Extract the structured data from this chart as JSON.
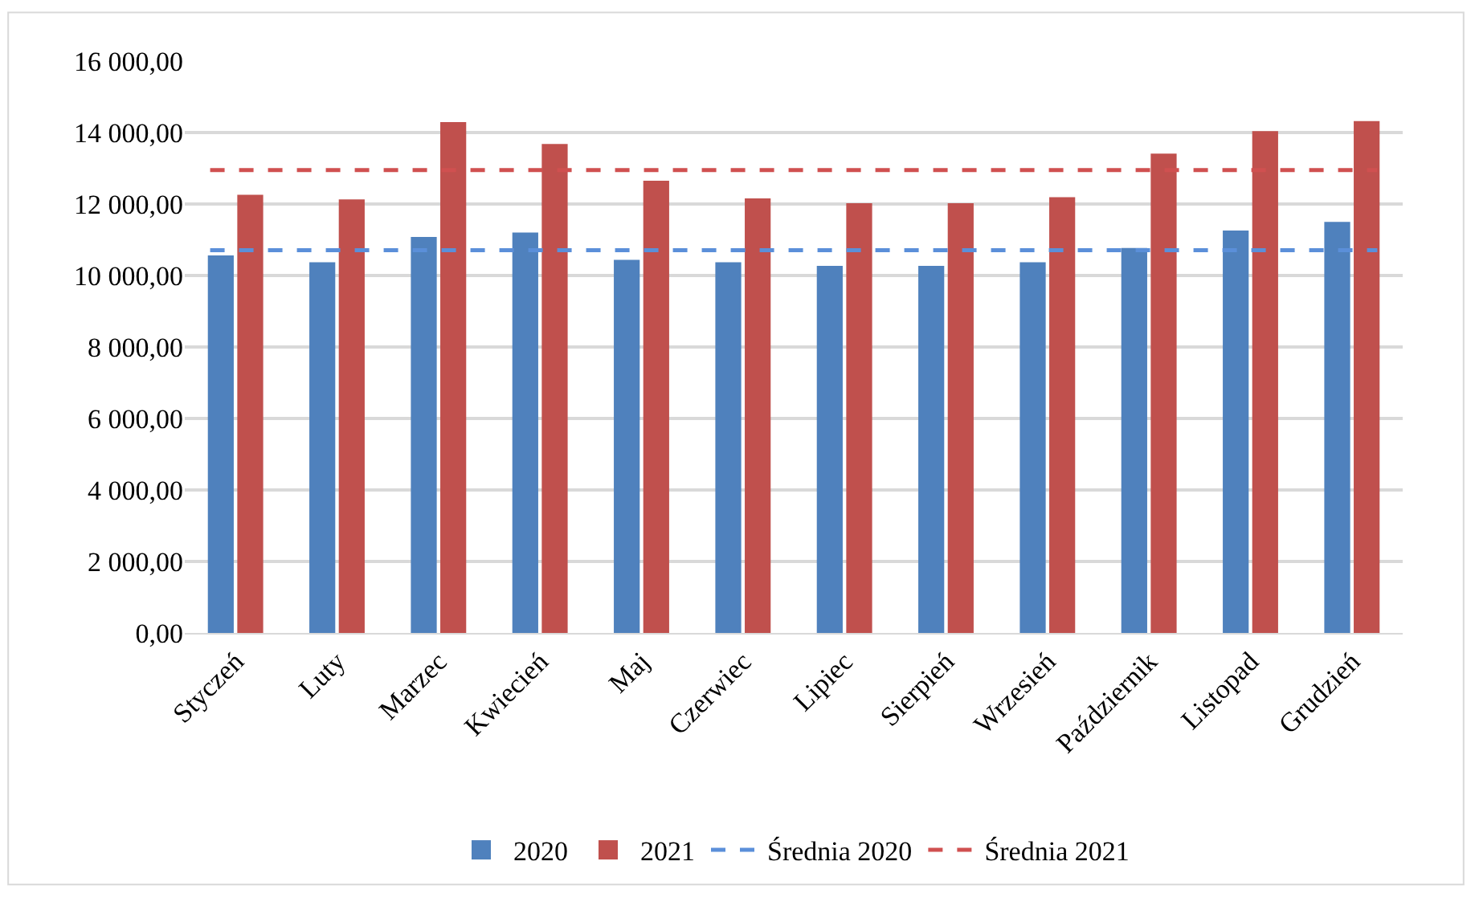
{
  "chart_data": {
    "type": "bar",
    "categories": [
      "Styczeń",
      "Luty",
      "Marzec",
      "Kwiecień",
      "Maj",
      "Czerwiec",
      "Lipiec",
      "Sierpień",
      "Wrzesień",
      "Październik",
      "Listopad",
      "Grudzień"
    ],
    "series": [
      {
        "name": "2020",
        "color": "#4f81bd",
        "values": [
          10560,
          10370,
          11080,
          11200,
          10440,
          10370,
          10270,
          10270,
          10370,
          10770,
          11260,
          11500
        ]
      },
      {
        "name": "2021",
        "color": "#c0504d",
        "values": [
          12260,
          12130,
          14290,
          13680,
          12650,
          12160,
          12020,
          12020,
          12190,
          13410,
          14040,
          14320
        ]
      }
    ],
    "ref_lines": [
      {
        "axis": "y",
        "value": 10710,
        "label": "Średnia 2020",
        "color": "#5b8fd9",
        "line_style": "dashed"
      },
      {
        "axis": "y",
        "value": 12950,
        "label": "Średnia 2021",
        "color": "#d05050",
        "line_style": "dashed"
      }
    ],
    "ylim": [
      0,
      16000
    ],
    "yticks": [
      {
        "value": 0,
        "label": "0,00"
      },
      {
        "value": 2000,
        "label": "2 000,00"
      },
      {
        "value": 4000,
        "label": "4 000,00"
      },
      {
        "value": 6000,
        "label": "6 000,00"
      },
      {
        "value": 8000,
        "label": "8 000,00"
      },
      {
        "value": 10000,
        "label": "10 000,00"
      },
      {
        "value": 12000,
        "label": "12 000,00"
      },
      {
        "value": 14000,
        "label": "14 000,00"
      },
      {
        "value": 16000,
        "label": "16 000,00"
      }
    ],
    "grid": "y",
    "legend": "bottom"
  }
}
